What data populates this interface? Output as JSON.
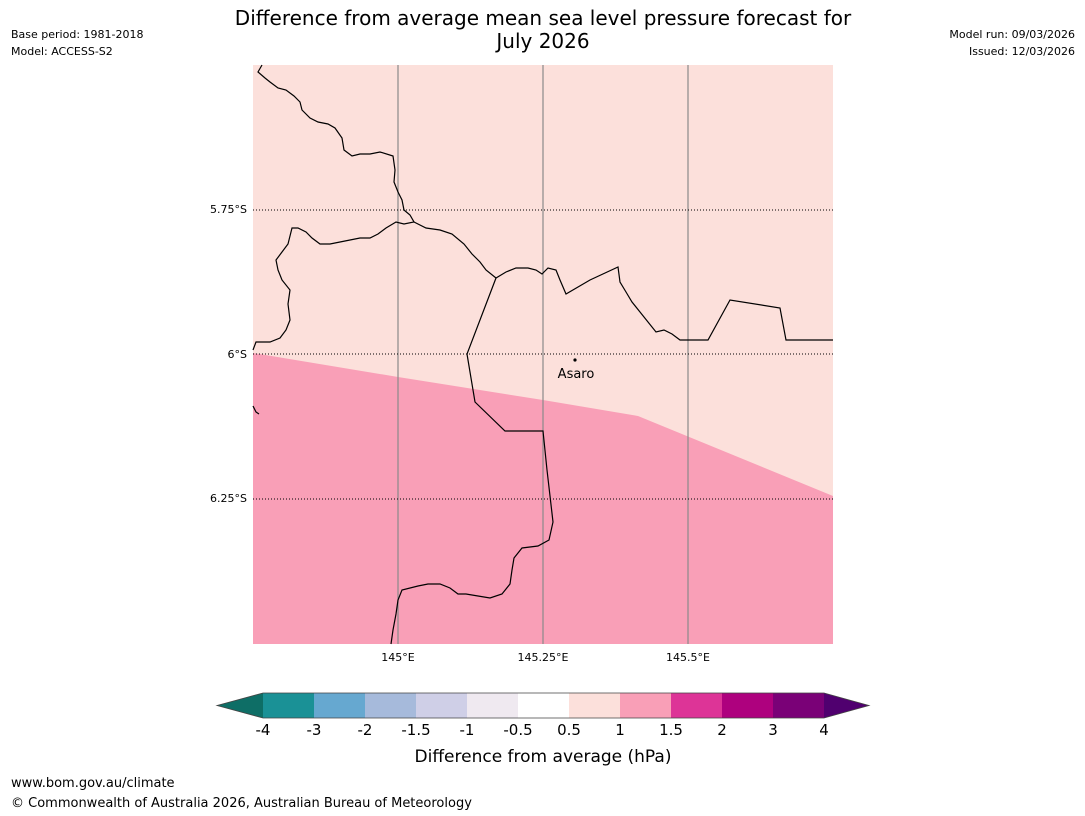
{
  "header": {
    "title_line1": "Difference from average mean sea level pressure forecast for",
    "title_line2": "July 2026",
    "base_period": "Base period: 1981-2018",
    "model": "Model: ACCESS-S2",
    "model_run": "Model run: 09/03/2026",
    "issued": "Issued: 12/03/2026"
  },
  "map": {
    "lat_labels": [
      "5.75°S",
      "6°S",
      "6.25°S"
    ],
    "lon_labels": [
      "145°E",
      "145.25°E",
      "145.5°E"
    ],
    "place": {
      "name": "Asaro",
      "lat": -6.01,
      "lon": 145.305
    },
    "fill_colors": {
      "light": "#fce0db",
      "pink": "#f99fb7"
    }
  },
  "colorbar": {
    "title": "Difference from average (hPa)",
    "tick_labels": [
      "-4",
      "-3",
      "-2",
      "-1.5",
      "-1",
      "-0.5",
      "0.5",
      "1",
      "1.5",
      "2",
      "3",
      "4"
    ],
    "colors": [
      "#0e6e66",
      "#1a9196",
      "#66a8d0",
      "#a6badb",
      "#cfcfe7",
      "#efe9f0",
      "#ffffff",
      "#fce0db",
      "#f99fb7",
      "#dd3497",
      "#ae017e",
      "#7a0177",
      "#50006f"
    ]
  },
  "footer": {
    "url": "www.bom.gov.au/climate",
    "copyright": "© Commonwealth of Australia 2026, Australian Bureau of Meteorology"
  }
}
